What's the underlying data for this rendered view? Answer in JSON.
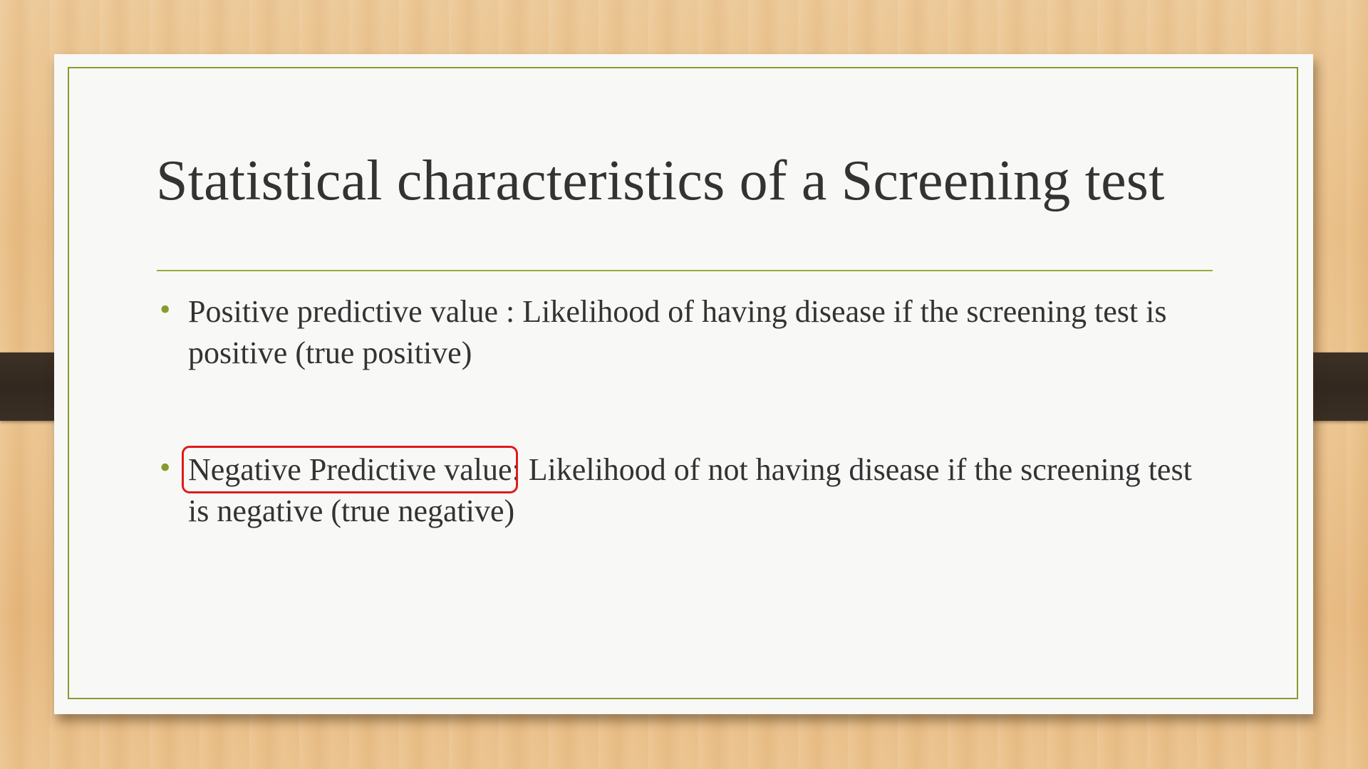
{
  "slide": {
    "title": "Statistical characteristics of a Screening test",
    "bullets": [
      {
        "term": "Positive predictive value",
        "text": " : Likelihood of having disease if the screening test is positive (true positive)"
      },
      {
        "term": "Negative Predictive value",
        "text": ": Likelihood of not having disease if the screening test is negative (true negative)",
        "highlighted": true
      }
    ]
  },
  "colors": {
    "accent": "#8a9a2c",
    "text": "#333333",
    "highlight_box": "#e01b1b",
    "background_wood": "#e8bd84",
    "clip": "#32281f"
  },
  "icons": {
    "bullet": "round-bullet-icon"
  }
}
